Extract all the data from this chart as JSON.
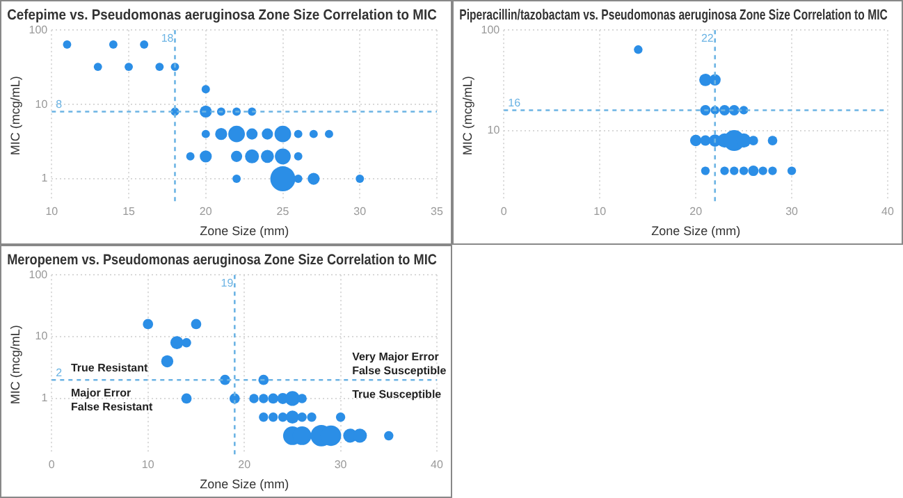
{
  "chart_data": [
    {
      "type": "bubble",
      "title": "Cefepime vs. Pseudomonas aeruginosa Zone Size Correlation to MIC",
      "xlabel": "Zone Size (mm)",
      "ylabel": "MIC (mcg/mL)",
      "color": "#2b8ee6",
      "log": "y",
      "grid": true,
      "x": [
        11,
        14,
        16,
        13,
        15,
        17,
        18,
        20,
        18,
        20,
        21,
        22,
        23,
        20,
        21,
        22,
        23,
        24,
        25,
        26,
        27,
        28,
        19,
        20,
        22,
        23,
        24,
        25,
        26,
        22,
        25,
        26,
        27,
        30
      ],
      "values": [
        64,
        64,
        64,
        32,
        32,
        32,
        32,
        16,
        8,
        8,
        8,
        8,
        8,
        4,
        4,
        4,
        4,
        4,
        4,
        4,
        4,
        4,
        2,
        2,
        2,
        2,
        2,
        2,
        2,
        1,
        1,
        1,
        1,
        1
      ],
      "sizes": [
        0.11,
        0.11,
        0.11,
        0.11,
        0.11,
        0.11,
        0.11,
        0.11,
        0.11,
        0.23,
        0.11,
        0.11,
        0.11,
        0.11,
        0.23,
        0.44,
        0.2,
        0.2,
        0.44,
        0.11,
        0.11,
        0.11,
        0.11,
        0.23,
        0.2,
        0.31,
        0.27,
        0.4,
        0.11,
        0.11,
        1,
        0.11,
        0.23,
        0.11
      ],
      "xlim": [
        10,
        35
      ],
      "xticks": [
        10,
        15,
        20,
        25,
        30,
        35
      ],
      "ylim": [
        0.5,
        100
      ],
      "yticks": [
        1,
        10,
        100
      ],
      "ref_lines": [
        {
          "axis": "x",
          "value": 18,
          "label": "18",
          "color": "#6cb4e4",
          "line_style": "dashed"
        },
        {
          "axis": "y",
          "value": 8,
          "label": "8",
          "color": "#6cb4e4",
          "line_style": "dashed"
        }
      ]
    },
    {
      "type": "bubble",
      "title": "Piperacillin/tazobactam vs. Pseudomonas aeruginosa Zone Size Correlation to MIC",
      "xlabel": "Zone Size (mm)",
      "ylabel": "MIC (mcg/mL)",
      "color": "#2b8ee6",
      "log": "y",
      "grid": true,
      "x": [
        14,
        21,
        22,
        21,
        22,
        23,
        24,
        25,
        20,
        21,
        22,
        23,
        24,
        25,
        26,
        28,
        21,
        23,
        24,
        25,
        26,
        27,
        28,
        30
      ],
      "values": [
        64,
        32,
        32,
        16,
        16,
        16,
        16,
        16,
        8,
        8,
        8,
        8,
        8,
        8,
        8,
        8,
        4,
        4,
        4,
        4,
        4,
        4,
        4,
        4
      ],
      "sizes": [
        0.17,
        0.35,
        0.3,
        0.25,
        0.17,
        0.25,
        0.25,
        0.17,
        0.3,
        0.25,
        0.35,
        0.46,
        1,
        0.46,
        0.21,
        0.21,
        0.17,
        0.17,
        0.17,
        0.17,
        0.25,
        0.17,
        0.17,
        0.17
      ],
      "xlim": [
        0,
        40
      ],
      "xticks": [
        0,
        10,
        20,
        30,
        40
      ],
      "ylim": [
        2,
        100
      ],
      "yticks": [
        10,
        100
      ],
      "ref_lines": [
        {
          "axis": "x",
          "value": 22,
          "label": "22",
          "color": "#6cb4e4",
          "line_style": "dashed"
        },
        {
          "axis": "y",
          "value": 16,
          "label": "16",
          "color": "#6cb4e4",
          "line_style": "dashed"
        }
      ]
    },
    {
      "type": "bubble",
      "title": "Meropenem vs. Pseudomonas aeruginosa Zone Size Correlation to MIC",
      "xlabel": "Zone Size (mm)",
      "ylabel": "MIC (mcg/mL)",
      "color": "#2b8ee6",
      "log": "y",
      "grid": true,
      "x": [
        10,
        15,
        13,
        14,
        12,
        18,
        22,
        14,
        19,
        21,
        22,
        23,
        24,
        25,
        26,
        22,
        23,
        24,
        25,
        26,
        27,
        30,
        25,
        26,
        28,
        29,
        31,
        32,
        35
      ],
      "values": [
        16,
        16,
        8,
        8,
        4,
        2,
        2,
        1,
        1,
        1,
        1,
        1,
        1,
        1,
        1,
        0.5,
        0.5,
        0.5,
        0.5,
        0.5,
        0.5,
        0.5,
        0.25,
        0.25,
        0.25,
        0.25,
        0.25,
        0.25,
        0.25
      ],
      "sizes": [
        0.23,
        0.23,
        0.37,
        0.19,
        0.32,
        0.23,
        0.23,
        0.23,
        0.23,
        0.19,
        0.19,
        0.23,
        0.27,
        0.48,
        0.19,
        0.19,
        0.19,
        0.19,
        0.37,
        0.19,
        0.19,
        0.19,
        0.76,
        0.76,
        1,
        0.91,
        0.43,
        0.43,
        0.19
      ],
      "xlim": [
        0,
        40
      ],
      "xticks": [
        0,
        10,
        20,
        30,
        40
      ],
      "ylim": [
        0.125,
        100
      ],
      "yticks": [
        1,
        10,
        100
      ],
      "ref_lines": [
        {
          "axis": "x",
          "value": 19,
          "label": "19",
          "color": "#6cb4e4",
          "line_style": "dashed"
        },
        {
          "axis": "y",
          "value": 2,
          "label": "2",
          "color": "#6cb4e4",
          "line_style": "dashed"
        }
      ],
      "annotations": [
        "True Resistant",
        "Very Major Error\nFalse Susceptible",
        "Major Error\nFalse Resistant",
        "True Susceptible"
      ]
    }
  ]
}
